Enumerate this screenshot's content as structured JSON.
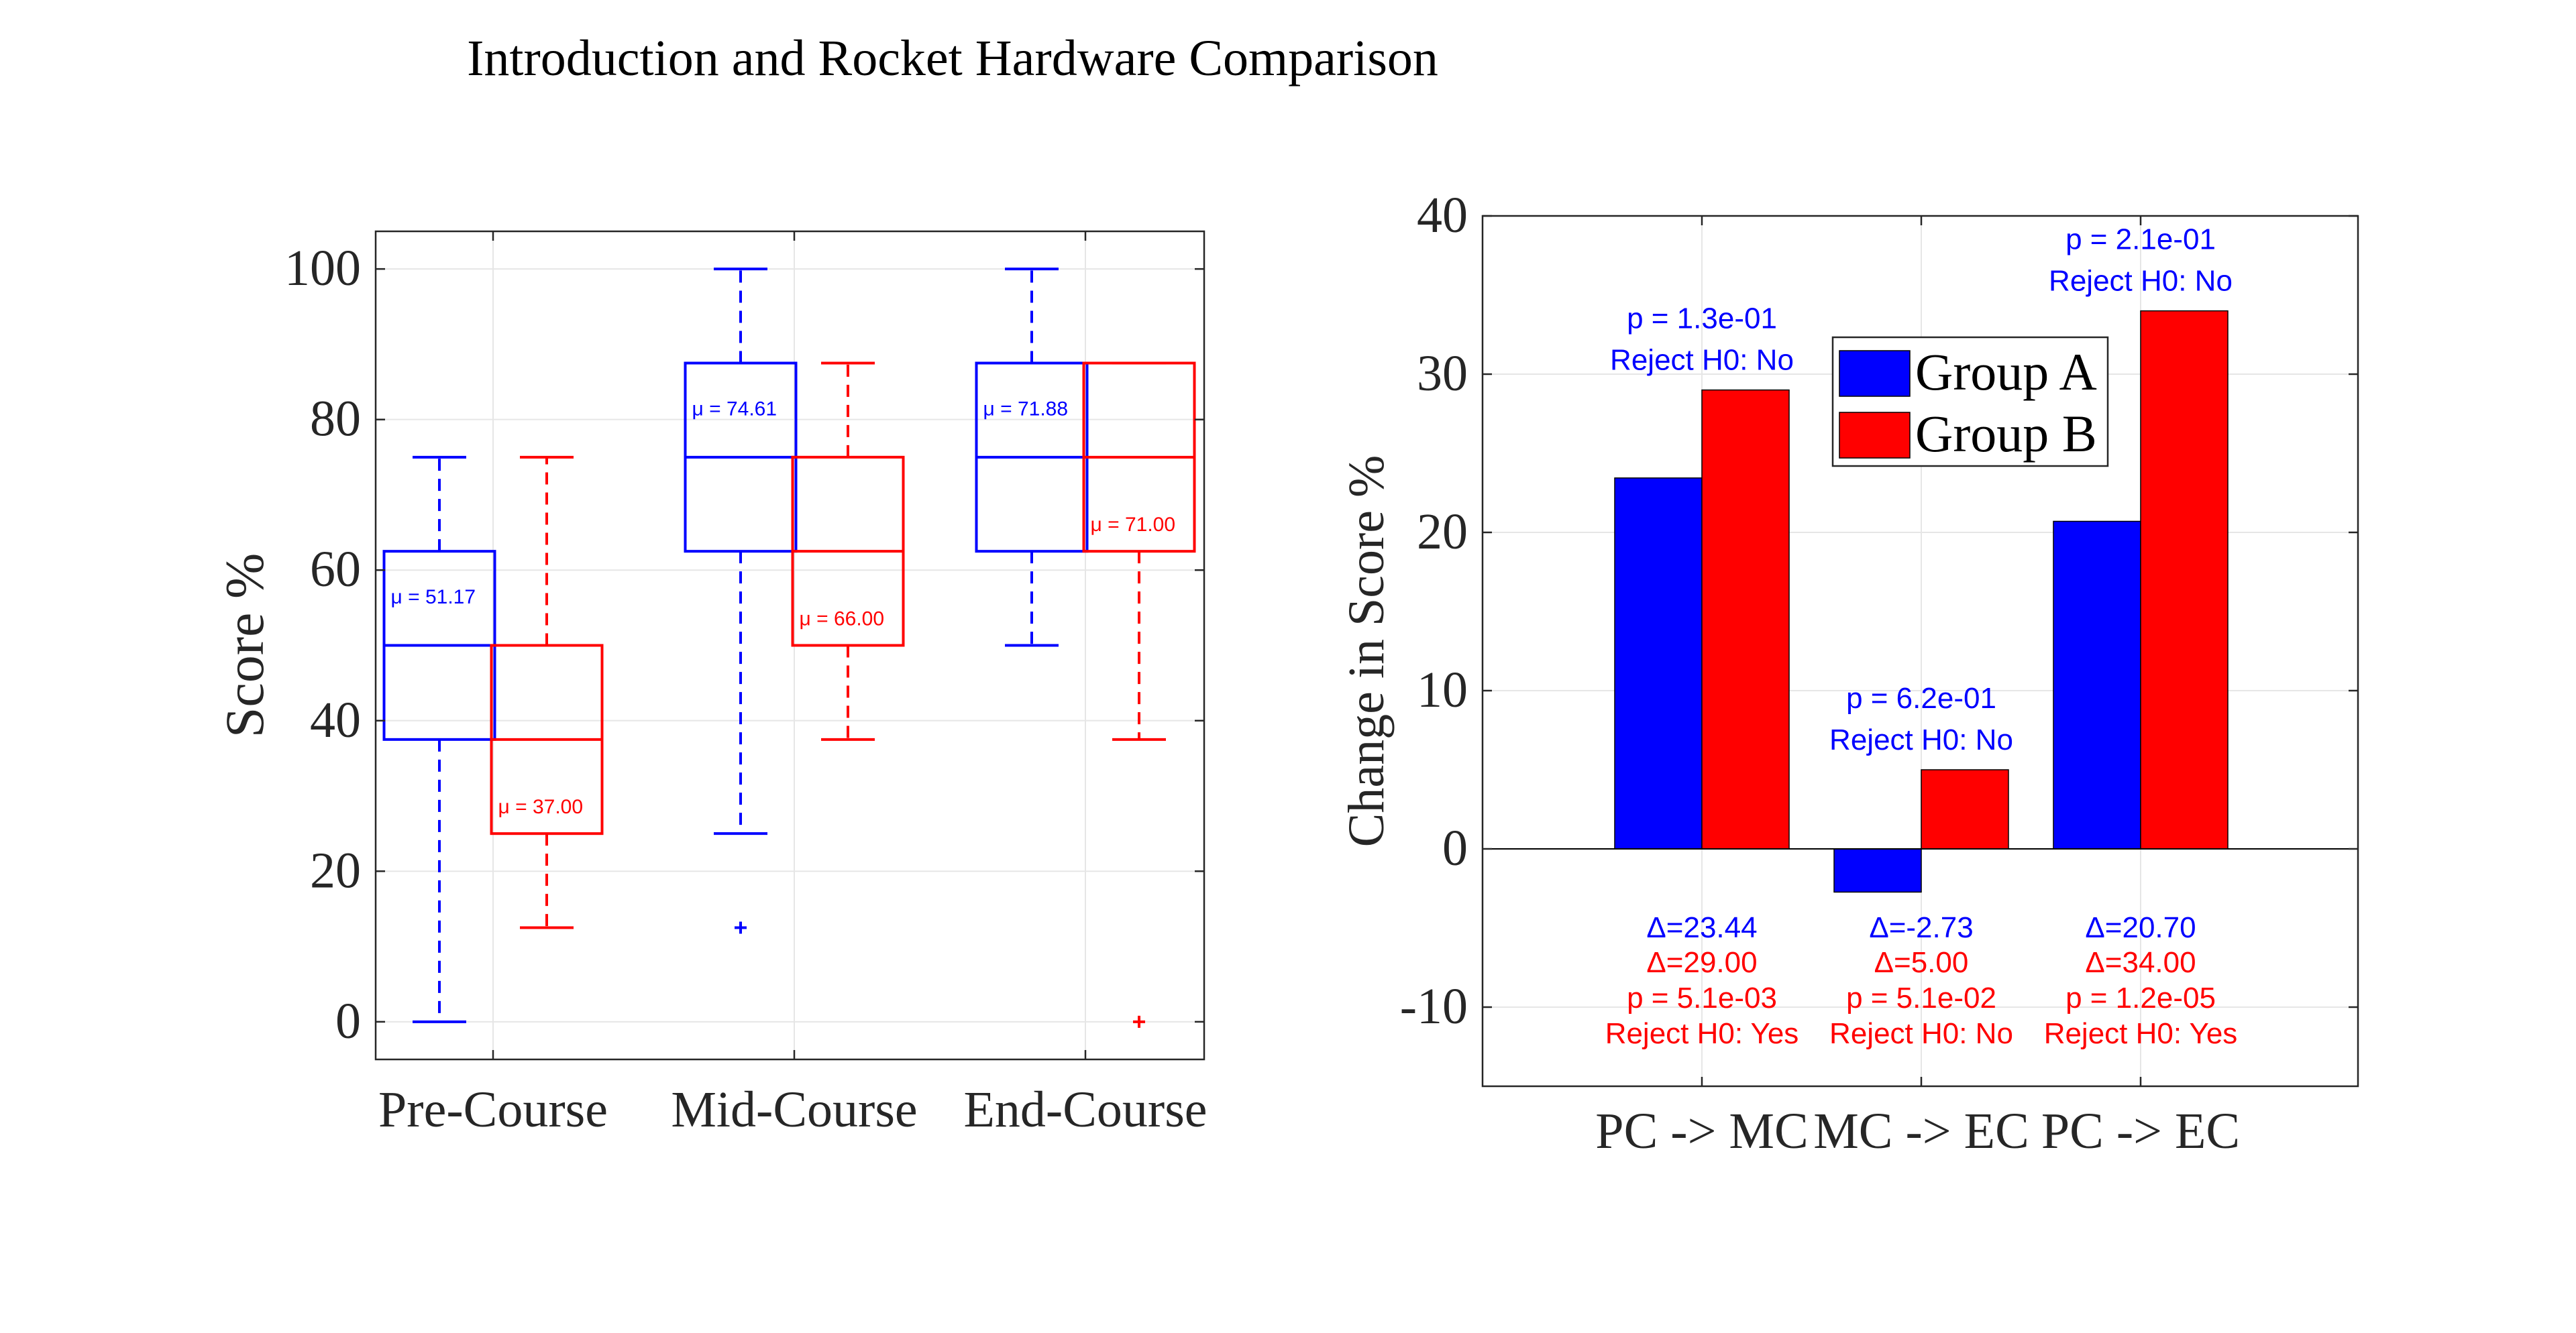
{
  "figure_title": "Introduction and Rocket Hardware Comparison",
  "colors": {
    "group_a": "#0000ff",
    "group_b": "#ff0000",
    "grid": "#e6e6e6",
    "axis": "#262626"
  },
  "chart_data": [
    {
      "type": "box",
      "title": "",
      "xlabel": "",
      "ylabel": "Score %",
      "ylim": [
        -5,
        105
      ],
      "yticks": [
        "0",
        "20",
        "40",
        "60",
        "80",
        "100"
      ],
      "ytick_values": [
        0,
        20,
        40,
        60,
        80,
        100
      ],
      "categories": [
        "Pre-Course",
        "Mid-Course",
        "End-Course"
      ],
      "grid": true,
      "series": [
        {
          "color": "#0000ff",
          "boxes": [
            {
              "whisker_low": 0,
              "q1": 37.5,
              "median": 50,
              "q3": 62.5,
              "whisker_high": 75,
              "outliers": [],
              "mean": 51.17,
              "mean_label": "μ = 51.17"
            },
            {
              "whisker_low": 25,
              "q1": 62.5,
              "median": 75,
              "q3": 87.5,
              "whisker_high": 100,
              "outliers": [
                12.5
              ],
              "mean": 74.61,
              "mean_label": "μ = 74.61"
            },
            {
              "whisker_low": 50,
              "q1": 62.5,
              "median": 75,
              "q3": 87.5,
              "whisker_high": 100,
              "outliers": [],
              "mean": 71.88,
              "mean_label": "μ = 71.88"
            }
          ]
        },
        {
          "color": "#ff0000",
          "boxes": [
            {
              "whisker_low": 12.5,
              "q1": 25,
              "median": 37.5,
              "q3": 50,
              "whisker_high": 75,
              "outliers": [],
              "mean": 37.0,
              "mean_label": "μ = 37.00"
            },
            {
              "whisker_low": 37.5,
              "q1": 50,
              "median": 62.5,
              "q3": 75,
              "whisker_high": 87.5,
              "outliers": [],
              "mean": 66.0,
              "mean_label": "μ = 66.00"
            },
            {
              "whisker_low": 37.5,
              "q1": 62.5,
              "median": 75,
              "q3": 87.5,
              "whisker_high": 87.5,
              "outliers": [
                0
              ],
              "mean": 71.0,
              "mean_label": "μ = 71.00"
            }
          ]
        }
      ]
    },
    {
      "type": "bar",
      "title": "",
      "xlabel": "",
      "ylabel": "Change in Score %",
      "ylim": [
        -15,
        40
      ],
      "yticks": [
        "-10",
        "0",
        "10",
        "20",
        "30",
        "40"
      ],
      "ytick_values": [
        -10,
        0,
        10,
        20,
        30,
        40
      ],
      "categories": [
        "PC -> MC",
        "MC -> EC",
        "PC -> EC"
      ],
      "grid": true,
      "legend_position": "top-center",
      "series": [
        {
          "name": "Group A",
          "color": "#0000ff",
          "values": [
            23.44,
            -2.73,
            20.7
          ]
        },
        {
          "name": "Group B",
          "color": "#ff0000",
          "values": [
            29.0,
            5.0,
            34.0
          ]
        }
      ],
      "annotations_above": [
        {
          "p": "p = 1.3e-01",
          "reject": "Reject H0: No"
        },
        {
          "p": "p = 6.2e-01",
          "reject": "Reject H0: No"
        },
        {
          "p": "p = 2.1e-01",
          "reject": "Reject H0: No"
        }
      ],
      "annotations_below": [
        {
          "delta_a": "Δ=23.44",
          "delta_b": "Δ=29.00",
          "p": "p = 5.1e-03",
          "reject": "Reject H0: Yes"
        },
        {
          "delta_a": "Δ=-2.73",
          "delta_b": "Δ=5.00",
          "p": "p = 5.1e-02",
          "reject": "Reject H0: No"
        },
        {
          "delta_a": "Δ=20.70",
          "delta_b": "Δ=34.00",
          "p": "p = 1.2e-05",
          "reject": "Reject H0: Yes"
        }
      ]
    }
  ]
}
